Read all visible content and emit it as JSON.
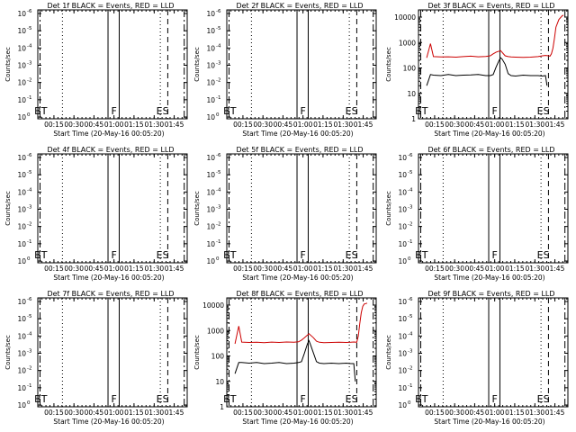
{
  "figure": {
    "xaxis_label": "Start Time (20-May-16 00:05:20)",
    "ylabel": "Counts/sec"
  },
  "chart_data": [
    {
      "type": "line",
      "title": "Det 1f BLACK = Events, RED = LLD",
      "ylim_exp": [
        0,
        -6
      ],
      "yticks_exp": [
        0,
        -1,
        -2,
        -3,
        -4,
        -5,
        -6
      ],
      "series": [],
      "markers": [
        "BT",
        "F",
        "ES"
      ]
    },
    {
      "type": "line",
      "title": "Det 2f BLACK = Events, RED = LLD",
      "ylim_exp": [
        0,
        -6
      ],
      "yticks_exp": [
        0,
        -1,
        -2,
        -3,
        -4,
        -5,
        -6
      ],
      "series": [],
      "markers": [
        "BT",
        "F",
        "ES"
      ]
    },
    {
      "type": "line",
      "title": "Det 3f BLACK = Events, RED = LLD",
      "ylog": true,
      "ylim_log": [
        1,
        10000
      ],
      "ytick_labels": [
        "1",
        "10",
        "100",
        "1000",
        "10000"
      ],
      "series": [
        {
          "color": "#cc0000",
          "x": [
            5.5,
            8,
            10,
            15,
            20,
            25,
            30,
            35,
            40,
            45,
            48,
            50,
            52,
            55,
            58,
            60,
            62,
            65,
            70,
            75,
            80,
            83,
            85,
            87,
            88,
            89,
            90,
            91,
            92,
            94,
            96,
            97
          ],
          "y": [
            250,
            900,
            280,
            270,
            275,
            265,
            280,
            290,
            275,
            285,
            300,
            360,
            420,
            480,
            300,
            280,
            270,
            265,
            260,
            265,
            280,
            300,
            310,
            300,
            290,
            360,
            600,
            1500,
            4000,
            8000,
            11000,
            12000
          ]
        },
        {
          "color": "#000000",
          "x": [
            5.5,
            8,
            10,
            15,
            20,
            25,
            30,
            35,
            40,
            45,
            48,
            50,
            52,
            54,
            55,
            56,
            58,
            60,
            62,
            65,
            70,
            75,
            80,
            83,
            85,
            86
          ],
          "y": [
            20,
            55,
            52,
            50,
            55,
            50,
            52,
            53,
            55,
            50,
            50,
            55,
            110,
            200,
            250,
            220,
            140,
            60,
            50,
            48,
            52,
            50,
            50,
            48,
            50,
            20
          ]
        }
      ],
      "markers": [
        "BT",
        "F",
        "ES"
      ]
    },
    {
      "type": "line",
      "title": "Det 4f BLACK = Events, RED = LLD",
      "ylim_exp": [
        0,
        -6
      ],
      "yticks_exp": [
        0,
        -1,
        -2,
        -3,
        -4,
        -5,
        -6
      ],
      "series": [],
      "markers": [
        "BT",
        "F",
        "ES"
      ]
    },
    {
      "type": "line",
      "title": "Det 5f BLACK = Events, RED = LLD",
      "ylim_exp": [
        0,
        -6
      ],
      "yticks_exp": [
        0,
        -1,
        -2,
        -3,
        -4,
        -5,
        -6
      ],
      "series": [],
      "markers": [
        "BT",
        "F",
        "ES"
      ]
    },
    {
      "type": "line",
      "title": "Det 6f BLACK = Events, RED = LLD",
      "ylim_exp": [
        0,
        -6
      ],
      "yticks_exp": [
        0,
        -1,
        -2,
        -3,
        -4,
        -5,
        -6
      ],
      "series": [],
      "markers": [
        "BT",
        "F",
        "ES"
      ]
    },
    {
      "type": "line",
      "title": "Det 7f BLACK = Events, RED = LLD",
      "ylim_exp": [
        0,
        -6
      ],
      "yticks_exp": [
        0,
        -1,
        -2,
        -3,
        -4,
        -5,
        -6
      ],
      "series": [],
      "markers": [
        "BT",
        "F",
        "ES"
      ]
    },
    {
      "type": "line",
      "title": "Det 8f BLACK = Events, RED = LLD",
      "ylog": true,
      "ylim_log": [
        1,
        10000
      ],
      "ytick_labels": [
        "1",
        "10",
        "100",
        "1000",
        "10000"
      ],
      "series": [
        {
          "color": "#cc0000",
          "x": [
            5.5,
            8,
            10,
            15,
            20,
            25,
            30,
            35,
            40,
            45,
            48,
            50,
            52,
            55,
            58,
            60,
            62,
            65,
            70,
            75,
            80,
            83,
            85,
            86,
            87,
            88,
            89,
            90,
            91,
            92,
            93,
            94
          ],
          "y": [
            300,
            1500,
            350,
            340,
            345,
            335,
            350,
            340,
            355,
            345,
            360,
            420,
            520,
            750,
            520,
            380,
            345,
            335,
            340,
            345,
            340,
            345,
            355,
            350,
            345,
            600,
            1800,
            5000,
            9000,
            11000,
            11500,
            12000
          ]
        },
        {
          "color": "#000000",
          "x": [
            5.5,
            8,
            10,
            15,
            20,
            25,
            30,
            35,
            40,
            45,
            48,
            50,
            52,
            54,
            55,
            56,
            58,
            60,
            62,
            65,
            70,
            75,
            80,
            83,
            85,
            86
          ],
          "y": [
            20,
            55,
            55,
            52,
            55,
            50,
            52,
            55,
            50,
            52,
            55,
            60,
            130,
            300,
            400,
            280,
            130,
            60,
            52,
            50,
            52,
            50,
            52,
            50,
            50,
            10
          ]
        }
      ],
      "markers": [
        "BT",
        "F",
        "ES"
      ]
    },
    {
      "type": "line",
      "title": "Det 9f BLACK = Events, RED = LLD",
      "ylim_exp": [
        0,
        -6
      ],
      "yticks_exp": [
        0,
        -1,
        -2,
        -3,
        -4,
        -5,
        -6
      ],
      "series": [],
      "markers": [
        "BT",
        "F",
        "ES"
      ]
    }
  ],
  "shared_x": {
    "xlim": [
      0,
      100
    ],
    "tick_labels": [
      "00:15",
      "00:30",
      "00:45",
      "01:00",
      "01:15",
      "01:30",
      "01:45"
    ],
    "tick_positions": [
      10.8,
      24.2,
      37.6,
      51.0,
      64.4,
      77.9,
      91.3
    ],
    "vlines": [
      {
        "x": 1.5,
        "style": "dashdot"
      },
      {
        "x": 16.5,
        "style": "dotted"
      },
      {
        "x": 47.0,
        "style": "solid"
      },
      {
        "x": 54.5,
        "style": "solid"
      },
      {
        "x": 82.0,
        "style": "dotted"
      },
      {
        "x": 87.0,
        "style": "dashed"
      },
      {
        "x": 98.0,
        "style": "dashdot"
      }
    ],
    "marker_x": [
      2.0,
      51.0,
      83.5
    ]
  }
}
